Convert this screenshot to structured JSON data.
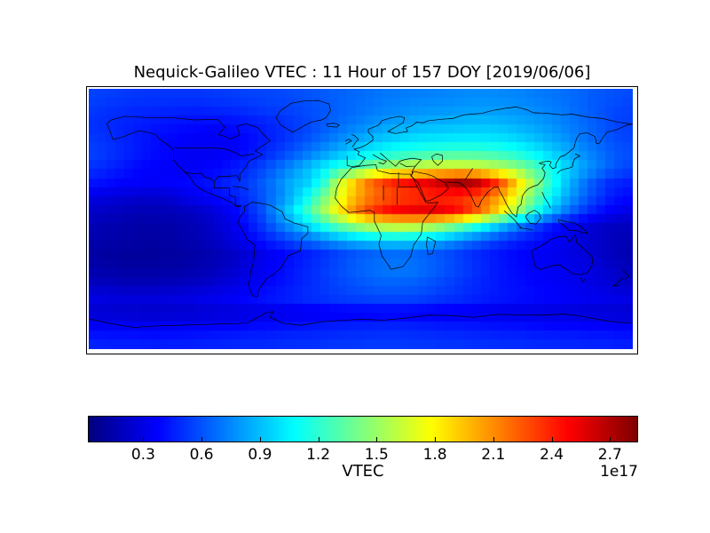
{
  "title": "Nequick-Galileo VTEC : 11 Hour of 157 DOY [2019/06/06]",
  "colorbar": {
    "label": "VTEC",
    "offset_text": "1e17",
    "tick_labels": [
      "0.3",
      "0.6",
      "0.9",
      "1.2",
      "1.5",
      "1.8",
      "2.1",
      "2.4",
      "2.7"
    ],
    "tick_values": [
      0.3,
      0.6,
      0.9,
      1.2,
      1.5,
      1.8,
      2.1,
      2.4,
      2.7
    ],
    "vmin": 0.02,
    "vmax": 2.84,
    "colormap": "jet",
    "orientation": "horizontal"
  },
  "chart_data": {
    "type": "heatmap",
    "title": "Nequick-Galileo VTEC : 11 Hour of 157 DOY [2019/06/06]",
    "value_label": "VTEC",
    "value_scale_label": "1e17",
    "colormap": "jet",
    "vmin": 0.02,
    "vmax": 2.84,
    "lon_range": [
      -180,
      180
    ],
    "lat_range": [
      -90,
      90
    ],
    "grid_step_deg": 10,
    "rows_order": "north-to-south",
    "lat_centers": [
      85,
      75,
      65,
      55,
      45,
      35,
      25,
      15,
      5,
      -5,
      -15,
      -25,
      -35,
      -45,
      -55,
      -65,
      -75,
      -85
    ],
    "values": [
      [
        0.55,
        0.54,
        0.53,
        0.52,
        0.52,
        0.52,
        0.52,
        0.52,
        0.53,
        0.54,
        0.55,
        0.56,
        0.57,
        0.58,
        0.6,
        0.62,
        0.64,
        0.66,
        0.68,
        0.7,
        0.71,
        0.72,
        0.73,
        0.74,
        0.75,
        0.76,
        0.76,
        0.75,
        0.74,
        0.72,
        0.7,
        0.68,
        0.65,
        0.62,
        0.6,
        0.58
      ],
      [
        0.52,
        0.5,
        0.49,
        0.48,
        0.47,
        0.47,
        0.46,
        0.46,
        0.47,
        0.48,
        0.5,
        0.52,
        0.54,
        0.56,
        0.58,
        0.61,
        0.64,
        0.67,
        0.7,
        0.73,
        0.75,
        0.77,
        0.78,
        0.79,
        0.8,
        0.81,
        0.81,
        0.8,
        0.78,
        0.76,
        0.73,
        0.7,
        0.66,
        0.62,
        0.58,
        0.55
      ],
      [
        0.5,
        0.48,
        0.46,
        0.44,
        0.42,
        0.41,
        0.4,
        0.39,
        0.39,
        0.4,
        0.42,
        0.45,
        0.48,
        0.52,
        0.56,
        0.61,
        0.66,
        0.71,
        0.76,
        0.8,
        0.83,
        0.85,
        0.87,
        0.88,
        0.89,
        0.9,
        0.9,
        0.88,
        0.85,
        0.82,
        0.78,
        0.73,
        0.68,
        0.63,
        0.58,
        0.54
      ],
      [
        0.52,
        0.49,
        0.46,
        0.43,
        0.4,
        0.38,
        0.36,
        0.35,
        0.35,
        0.36,
        0.39,
        0.43,
        0.48,
        0.54,
        0.6,
        0.67,
        0.74,
        0.81,
        0.87,
        0.92,
        0.96,
        0.99,
        1.01,
        1.02,
        1.03,
        1.03,
        1.02,
        1.0,
        0.96,
        0.91,
        0.85,
        0.79,
        0.72,
        0.66,
        0.6,
        0.56
      ],
      [
        0.55,
        0.51,
        0.47,
        0.43,
        0.4,
        0.37,
        0.35,
        0.34,
        0.34,
        0.36,
        0.4,
        0.46,
        0.53,
        0.61,
        0.7,
        0.79,
        0.88,
        0.97,
        1.05,
        1.11,
        1.16,
        1.2,
        1.23,
        1.25,
        1.26,
        1.26,
        1.24,
        1.2,
        1.14,
        1.06,
        0.97,
        0.88,
        0.79,
        0.71,
        0.64,
        0.59
      ],
      [
        0.5,
        0.46,
        0.42,
        0.38,
        0.36,
        0.35,
        0.35,
        0.36,
        0.38,
        0.42,
        0.48,
        0.56,
        0.66,
        0.77,
        0.89,
        1.02,
        1.15,
        1.28,
        1.4,
        1.5,
        1.58,
        1.64,
        1.68,
        1.7,
        1.7,
        1.68,
        1.63,
        1.55,
        1.44,
        1.3,
        1.14,
        0.99,
        0.86,
        0.75,
        0.65,
        0.57
      ],
      [
        0.42,
        0.39,
        0.37,
        0.36,
        0.36,
        0.37,
        0.38,
        0.4,
        0.43,
        0.47,
        0.53,
        0.62,
        0.73,
        0.87,
        0.95,
        1.15,
        1.6,
        1.9,
        2.15,
        2.32,
        2.42,
        2.48,
        2.55,
        2.65,
        2.75,
        2.7,
        2.5,
        2.2,
        1.85,
        1.5,
        1.2,
        0.95,
        0.75,
        0.6,
        0.5,
        0.45
      ],
      [
        0.3,
        0.27,
        0.25,
        0.24,
        0.24,
        0.25,
        0.32,
        0.35,
        0.39,
        0.44,
        0.51,
        0.6,
        0.72,
        0.88,
        1.1,
        1.38,
        1.68,
        1.95,
        2.12,
        2.22,
        2.28,
        2.32,
        2.35,
        2.36,
        2.34,
        2.28,
        2.16,
        1.96,
        1.68,
        1.38,
        1.1,
        0.88,
        0.7,
        0.56,
        0.46,
        0.4
      ],
      [
        0.22,
        0.2,
        0.18,
        0.17,
        0.17,
        0.18,
        0.2,
        0.23,
        0.28,
        0.35,
        0.45,
        0.58,
        0.8,
        1.0,
        1.25,
        1.52,
        1.8,
        2.08,
        2.3,
        2.45,
        2.52,
        2.56,
        2.58,
        2.55,
        2.45,
        2.28,
        2.05,
        1.78,
        1.48,
        1.18,
        0.92,
        0.72,
        0.56,
        0.44,
        0.36,
        0.3
      ],
      [
        0.17,
        0.15,
        0.14,
        0.13,
        0.13,
        0.14,
        0.16,
        0.19,
        0.24,
        0.31,
        0.4,
        0.52,
        0.67,
        0.82,
        0.98,
        1.15,
        1.32,
        1.47,
        1.58,
        1.65,
        1.68,
        1.67,
        1.62,
        1.52,
        1.38,
        1.22,
        1.05,
        0.88,
        0.72,
        0.57,
        0.45,
        0.36,
        0.29,
        0.24,
        0.21,
        0.19
      ],
      [
        0.15,
        0.14,
        0.13,
        0.12,
        0.12,
        0.13,
        0.15,
        0.18,
        0.22,
        0.28,
        0.35,
        0.42,
        0.5,
        0.58,
        0.66,
        0.74,
        0.82,
        0.88,
        0.93,
        0.96,
        0.97,
        0.95,
        0.9,
        0.83,
        0.74,
        0.66,
        0.58,
        0.51,
        0.45,
        0.41,
        0.37,
        0.33,
        0.28,
        0.24,
        0.2,
        0.17
      ],
      [
        0.12,
        0.11,
        0.1,
        0.1,
        0.1,
        0.11,
        0.12,
        0.14,
        0.17,
        0.21,
        0.26,
        0.31,
        0.36,
        0.41,
        0.45,
        0.5,
        0.55,
        0.6,
        0.63,
        0.66,
        0.67,
        0.66,
        0.63,
        0.59,
        0.54,
        0.49,
        0.45,
        0.41,
        0.38,
        0.36,
        0.34,
        0.31,
        0.28,
        0.24,
        0.2,
        0.16
      ],
      [
        0.14,
        0.13,
        0.12,
        0.12,
        0.12,
        0.13,
        0.14,
        0.16,
        0.19,
        0.23,
        0.28,
        0.33,
        0.38,
        0.43,
        0.48,
        0.53,
        0.58,
        0.63,
        0.67,
        0.7,
        0.71,
        0.7,
        0.66,
        0.61,
        0.56,
        0.51,
        0.46,
        0.42,
        0.39,
        0.37,
        0.35,
        0.33,
        0.31,
        0.28,
        0.24,
        0.19
      ],
      [
        0.2,
        0.19,
        0.18,
        0.18,
        0.18,
        0.19,
        0.2,
        0.22,
        0.25,
        0.28,
        0.32,
        0.36,
        0.4,
        0.44,
        0.48,
        0.52,
        0.56,
        0.59,
        0.62,
        0.64,
        0.64,
        0.63,
        0.6,
        0.56,
        0.52,
        0.48,
        0.45,
        0.42,
        0.4,
        0.38,
        0.36,
        0.34,
        0.32,
        0.29,
        0.26,
        0.22
      ],
      [
        0.3,
        0.29,
        0.28,
        0.28,
        0.28,
        0.29,
        0.3,
        0.32,
        0.34,
        0.36,
        0.39,
        0.42,
        0.45,
        0.47,
        0.5,
        0.52,
        0.54,
        0.56,
        0.57,
        0.58,
        0.58,
        0.57,
        0.55,
        0.52,
        0.5,
        0.47,
        0.45,
        0.43,
        0.41,
        0.4,
        0.38,
        0.37,
        0.35,
        0.34,
        0.32,
        0.31
      ],
      [
        0.24,
        0.23,
        0.23,
        0.22,
        0.22,
        0.23,
        0.23,
        0.24,
        0.25,
        0.26,
        0.27,
        0.28,
        0.29,
        0.3,
        0.31,
        0.32,
        0.33,
        0.34,
        0.34,
        0.35,
        0.35,
        0.34,
        0.33,
        0.32,
        0.32,
        0.31,
        0.3,
        0.29,
        0.29,
        0.28,
        0.27,
        0.27,
        0.26,
        0.25,
        0.25,
        0.24
      ],
      [
        0.36,
        0.35,
        0.35,
        0.34,
        0.34,
        0.35,
        0.35,
        0.36,
        0.37,
        0.38,
        0.39,
        0.4,
        0.41,
        0.42,
        0.43,
        0.44,
        0.45,
        0.46,
        0.46,
        0.47,
        0.47,
        0.46,
        0.45,
        0.44,
        0.44,
        0.43,
        0.42,
        0.41,
        0.41,
        0.4,
        0.39,
        0.39,
        0.38,
        0.37,
        0.37,
        0.36
      ],
      [
        0.46,
        0.45,
        0.45,
        0.45,
        0.44,
        0.45,
        0.45,
        0.46,
        0.46,
        0.47,
        0.48,
        0.48,
        0.49,
        0.5,
        0.5,
        0.51,
        0.52,
        0.52,
        0.53,
        0.53,
        0.53,
        0.52,
        0.52,
        0.51,
        0.51,
        0.5,
        0.5,
        0.49,
        0.49,
        0.48,
        0.48,
        0.47,
        0.47,
        0.46,
        0.46,
        0.45
      ]
    ]
  }
}
